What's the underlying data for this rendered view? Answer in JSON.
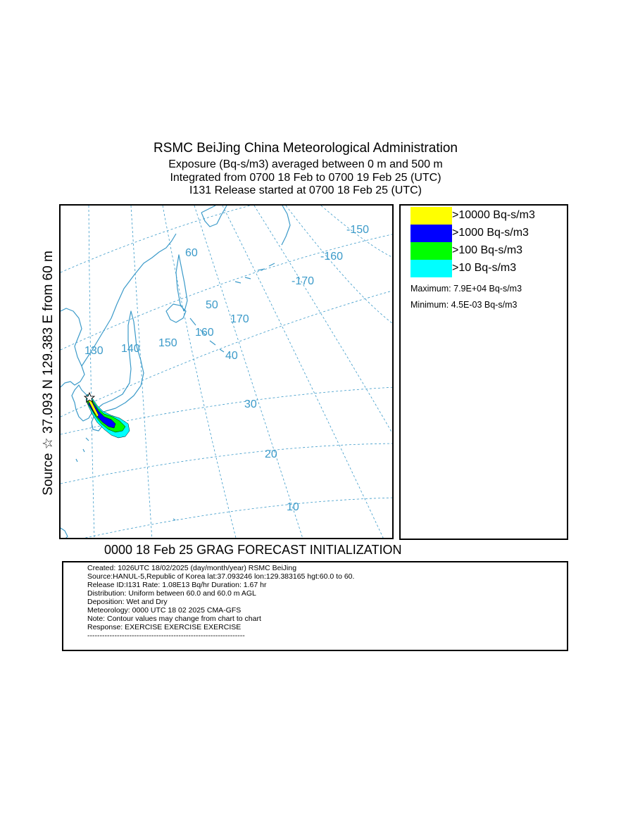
{
  "header": {
    "title": "RSMC BeiJing China Meteorological Administration",
    "line2": "Exposure  (Bq-s/m3) averaged between     0 m and   500 m",
    "line3": "Integrated from 0700 18 Feb to 0700 19 Feb 25 (UTC)",
    "line4": "I131 Release started at 0700 18 Feb 25 (UTC)"
  },
  "side_label": "Source ☆ 37.093  N 129.383  E    from   60 m",
  "map": {
    "grid_labels": {
      "lat_10": "10",
      "lat_20": "20",
      "lat_30": "30",
      "lat_40": "40",
      "lat_50": "50",
      "lat_60": "60",
      "lon_130": "130",
      "lon_140": "140",
      "lon_150": "150",
      "lon_160": "160",
      "lon_170": "170",
      "lon_m170": "-170",
      "lon_m160": "-160",
      "lon_m150": "-150"
    },
    "colors": {
      "coastline": "#3b9ac9",
      "grid": "#3b9ac9",
      "plume_10": "#00ffff",
      "plume_100": "#00ff00",
      "plume_1000": "#0000ff",
      "plume_10000": "#ffff00"
    },
    "source_marker_icon": "star-icon"
  },
  "legend": {
    "items": [
      {
        "color": "#ffff00",
        "label": ">10000 Bq-s/m3"
      },
      {
        "color": "#0000ff",
        "label": ">1000 Bq-s/m3"
      },
      {
        "color": "#00ff00",
        "label": ">100 Bq-s/m3"
      },
      {
        "color": "#00ffff",
        "label": ">10 Bq-s/m3"
      }
    ],
    "maximum": "Maximum: 7.9E+04 Bq-s/m3",
    "minimum": "Minimum: 4.5E-03 Bq-s/m3"
  },
  "forecast_line": "0000 18 Feb 25 GRAG FORECAST INITIALIZATION",
  "info": {
    "lines": [
      "Created: 1026UTC 18/02/2025 (day/month/year) RSMC BeiJing",
      "Source:HANUL-5,Republic of Korea  lat:37.093246  lon:129.383165  hgt:60.0 to 60.",
      "Release ID:I131   Rate: 1.08E13 Bq/hr  Duration: 1.67 hr",
      "Distribution: Uniform between 60.0 and 60.0 m AGL",
      "Deposition:   Wet and Dry",
      "Meteorology: 0000 UTC 18 02 2025 CMA-GFS",
      "Note: Contour values may change from chart to chart",
      "Response: EXERCISE  EXERCISE  EXERCISE",
      "----------------------------------------------------------------"
    ]
  }
}
